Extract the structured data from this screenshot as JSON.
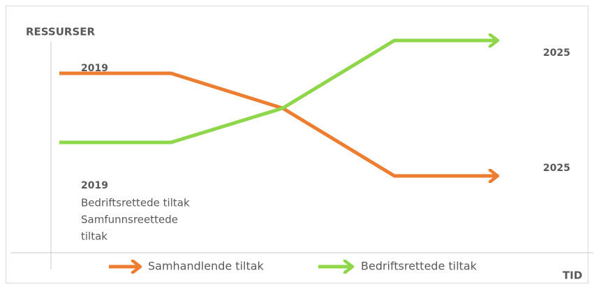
{
  "axes": {
    "y_label": "RESSURSER",
    "x_label": "TID"
  },
  "start_top": "2019",
  "end_top": "2025",
  "end_bottom": "2025",
  "note": {
    "year": "2019",
    "lines": [
      "Bedriftsrettede tiltak",
      "Samfunnsreettede",
      "tiltak"
    ]
  },
  "legend": [
    "Samhandlende tiltak",
    "Bedriftsrettede tiltak"
  ]
}
